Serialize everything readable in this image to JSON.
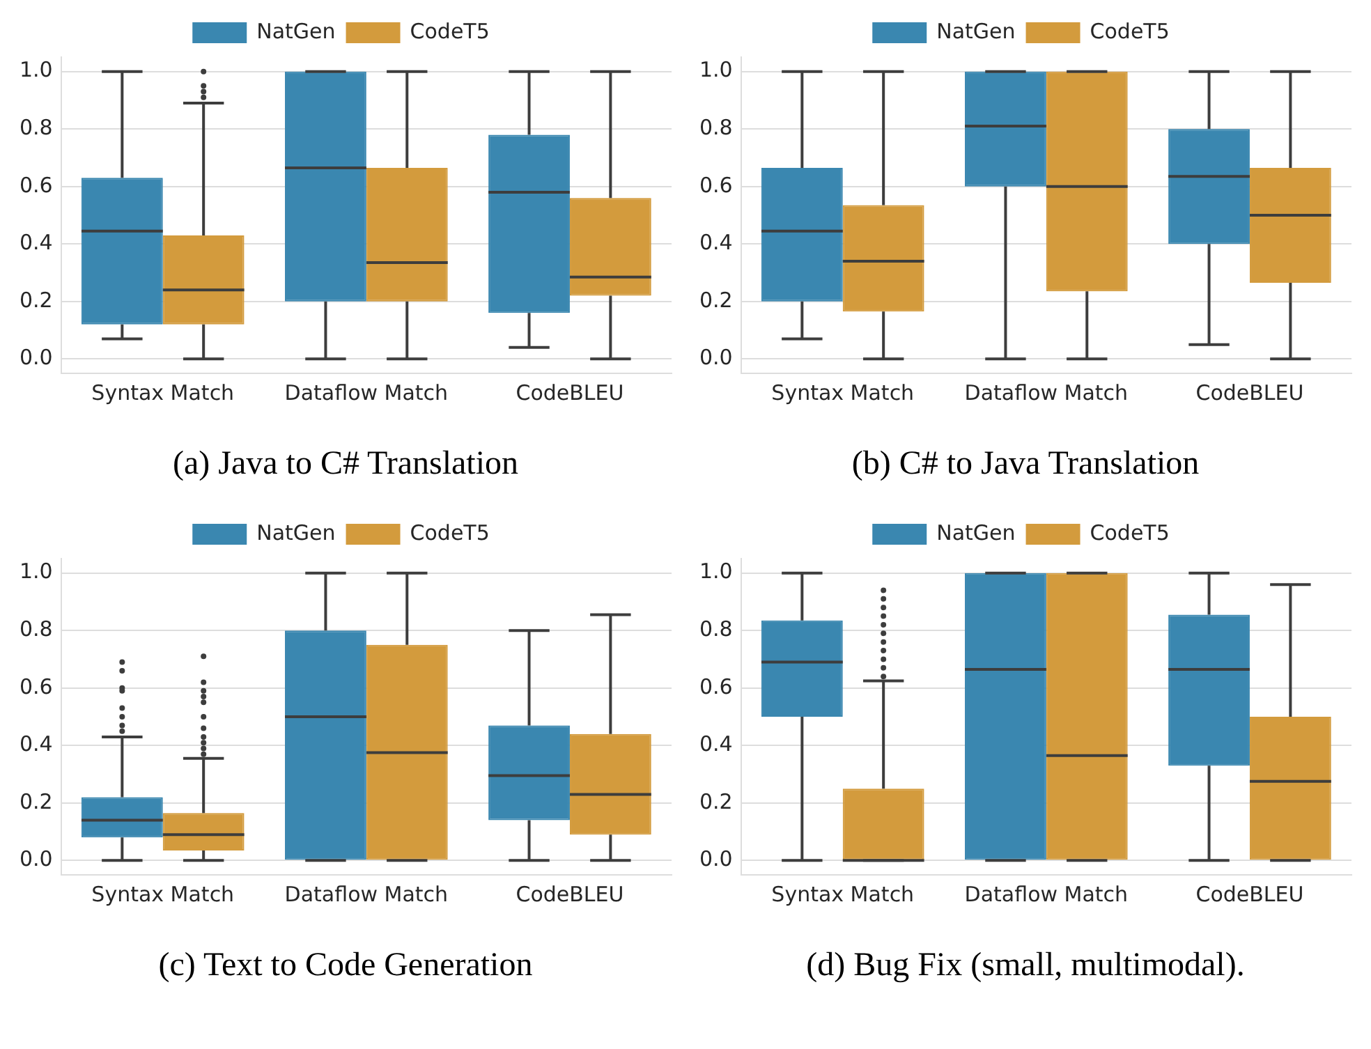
{
  "chart_data": [
    {
      "type": "box",
      "title": "(a)  Java to C# Translation",
      "categories": [
        "Syntax Match",
        "Dataflow Match",
        "CodeBLEU"
      ],
      "ylim": [
        -0.05,
        1.05
      ],
      "yticks": [
        {
          "value": 0,
          "label": "0.0"
        },
        {
          "value": 0.2,
          "label": "0.2"
        },
        {
          "value": 0.4,
          "label": "0.4"
        },
        {
          "value": 0.6,
          "label": "0.6"
        },
        {
          "value": 0.8,
          "label": "0.8"
        },
        {
          "value": 1,
          "label": "1.0"
        }
      ],
      "grid": "y",
      "legend": "top",
      "series": [
        {
          "name": "NatGen",
          "color": "#3a87b0",
          "boxes": [
            {
              "low": 0.07,
              "q1": 0.12,
              "median": 0.445,
              "q3": 0.63,
              "high": 1.0
            },
            {
              "low": 0,
              "q1": 0.2,
              "median": 0.665,
              "q3": 1.0,
              "high": 1.0
            },
            {
              "low": 0.04,
              "q1": 0.16,
              "median": 0.58,
              "q3": 0.78,
              "high": 1.0
            }
          ]
        },
        {
          "name": "CodeT5",
          "color": "#d39b3d",
          "boxes": [
            {
              "low": 0,
              "q1": 0.12,
              "median": 0.24,
              "q3": 0.43,
              "high": 0.89,
              "outliers": [
                0.91,
                0.93,
                0.95,
                1.0
              ]
            },
            {
              "low": 0,
              "q1": 0.2,
              "median": 0.335,
              "q3": 0.665,
              "high": 1.0
            },
            {
              "low": 0,
              "q1": 0.22,
              "median": 0.285,
              "q3": 0.56,
              "high": 1.0
            }
          ]
        }
      ]
    },
    {
      "type": "box",
      "title": "(b)  C# to Java Translation",
      "categories": [
        "Syntax Match",
        "Dataflow Match",
        "CodeBLEU"
      ],
      "ylim": [
        -0.05,
        1.05
      ],
      "yticks": [
        {
          "value": 0,
          "label": "0.0"
        },
        {
          "value": 0.2,
          "label": "0.2"
        },
        {
          "value": 0.4,
          "label": "0.4"
        },
        {
          "value": 0.6,
          "label": "0.6"
        },
        {
          "value": 0.8,
          "label": "0.8"
        },
        {
          "value": 1,
          "label": "1.0"
        }
      ],
      "grid": "y",
      "legend": "top",
      "series": [
        {
          "name": "NatGen",
          "color": "#3a87b0",
          "boxes": [
            {
              "low": 0.07,
              "q1": 0.2,
              "median": 0.445,
              "q3": 0.665,
              "high": 1.0
            },
            {
              "low": 0,
              "q1": 0.6,
              "median": 0.81,
              "q3": 1.0,
              "high": 1.0
            },
            {
              "low": 0.05,
              "q1": 0.4,
              "median": 0.635,
              "q3": 0.8,
              "high": 1.0
            }
          ]
        },
        {
          "name": "CodeT5",
          "color": "#d39b3d",
          "boxes": [
            {
              "low": 0,
              "q1": 0.165,
              "median": 0.34,
              "q3": 0.535,
              "high": 1.0
            },
            {
              "low": 0,
              "q1": 0.235,
              "median": 0.6,
              "q3": 1.0,
              "high": 1.0
            },
            {
              "low": 0,
              "q1": 0.265,
              "median": 0.5,
              "q3": 0.665,
              "high": 1.0
            }
          ]
        }
      ]
    },
    {
      "type": "box",
      "title": "(c)  Text to Code Generation",
      "categories": [
        "Syntax Match",
        "Dataflow Match",
        "CodeBLEU"
      ],
      "ylim": [
        -0.05,
        1.05
      ],
      "yticks": [
        {
          "value": 0,
          "label": "0.0"
        },
        {
          "value": 0.2,
          "label": "0.2"
        },
        {
          "value": 0.4,
          "label": "0.4"
        },
        {
          "value": 0.6,
          "label": "0.6"
        },
        {
          "value": 0.8,
          "label": "0.8"
        },
        {
          "value": 1,
          "label": "1.0"
        }
      ],
      "grid": "y",
      "legend": "top",
      "series": [
        {
          "name": "NatGen",
          "color": "#3a87b0",
          "boxes": [
            {
              "low": 0,
              "q1": 0.08,
              "median": 0.14,
              "q3": 0.22,
              "high": 0.43,
              "outliers": [
                0.45,
                0.47,
                0.5,
                0.53,
                0.59,
                0.6,
                0.66,
                0.69
              ]
            },
            {
              "low": 0,
              "q1": 0,
              "median": 0.5,
              "q3": 0.8,
              "high": 1.0
            },
            {
              "low": 0,
              "q1": 0.14,
              "median": 0.295,
              "q3": 0.47,
              "high": 0.8
            }
          ]
        },
        {
          "name": "CodeT5",
          "color": "#d39b3d",
          "boxes": [
            {
              "low": 0,
              "q1": 0.035,
              "median": 0.09,
              "q3": 0.165,
              "high": 0.355,
              "outliers": [
                0.37,
                0.39,
                0.41,
                0.43,
                0.46,
                0.5,
                0.55,
                0.57,
                0.59,
                0.62,
                0.71
              ]
            },
            {
              "low": 0,
              "q1": 0,
              "median": 0.375,
              "q3": 0.75,
              "high": 1.0
            },
            {
              "low": 0,
              "q1": 0.09,
              "median": 0.23,
              "q3": 0.44,
              "high": 0.855
            }
          ]
        }
      ]
    },
    {
      "type": "box",
      "title": "(d)  Bug Fix (small, multimodal).",
      "categories": [
        "Syntax Match",
        "Dataflow Match",
        "CodeBLEU"
      ],
      "ylim": [
        -0.05,
        1.05
      ],
      "yticks": [
        {
          "value": 0,
          "label": "0.0"
        },
        {
          "value": 0.2,
          "label": "0.2"
        },
        {
          "value": 0.4,
          "label": "0.4"
        },
        {
          "value": 0.6,
          "label": "0.6"
        },
        {
          "value": 0.8,
          "label": "0.8"
        },
        {
          "value": 1,
          "label": "1.0"
        }
      ],
      "grid": "y",
      "legend": "top",
      "series": [
        {
          "name": "NatGen",
          "color": "#3a87b0",
          "boxes": [
            {
              "low": 0,
              "q1": 0.5,
              "median": 0.69,
              "q3": 0.835,
              "high": 1.0
            },
            {
              "low": 0,
              "q1": 0,
              "median": 0.665,
              "q3": 1.0,
              "high": 1.0
            },
            {
              "low": 0,
              "q1": 0.33,
              "median": 0.665,
              "q3": 0.855,
              "high": 1.0
            }
          ]
        },
        {
          "name": "CodeT5",
          "color": "#d39b3d",
          "boxes": [
            {
              "low": 0,
              "q1": 0,
              "median": 0,
              "q3": 0.25,
              "high": 0.625,
              "outliers": [
                0.64,
                0.67,
                0.7,
                0.73,
                0.76,
                0.79,
                0.82,
                0.85,
                0.88,
                0.91,
                0.94
              ]
            },
            {
              "low": 0,
              "q1": 0,
              "median": 0.365,
              "q3": 1.0,
              "high": 1.0
            },
            {
              "low": 0,
              "q1": 0,
              "median": 0.275,
              "q3": 0.5,
              "high": 0.96
            }
          ]
        }
      ]
    }
  ]
}
